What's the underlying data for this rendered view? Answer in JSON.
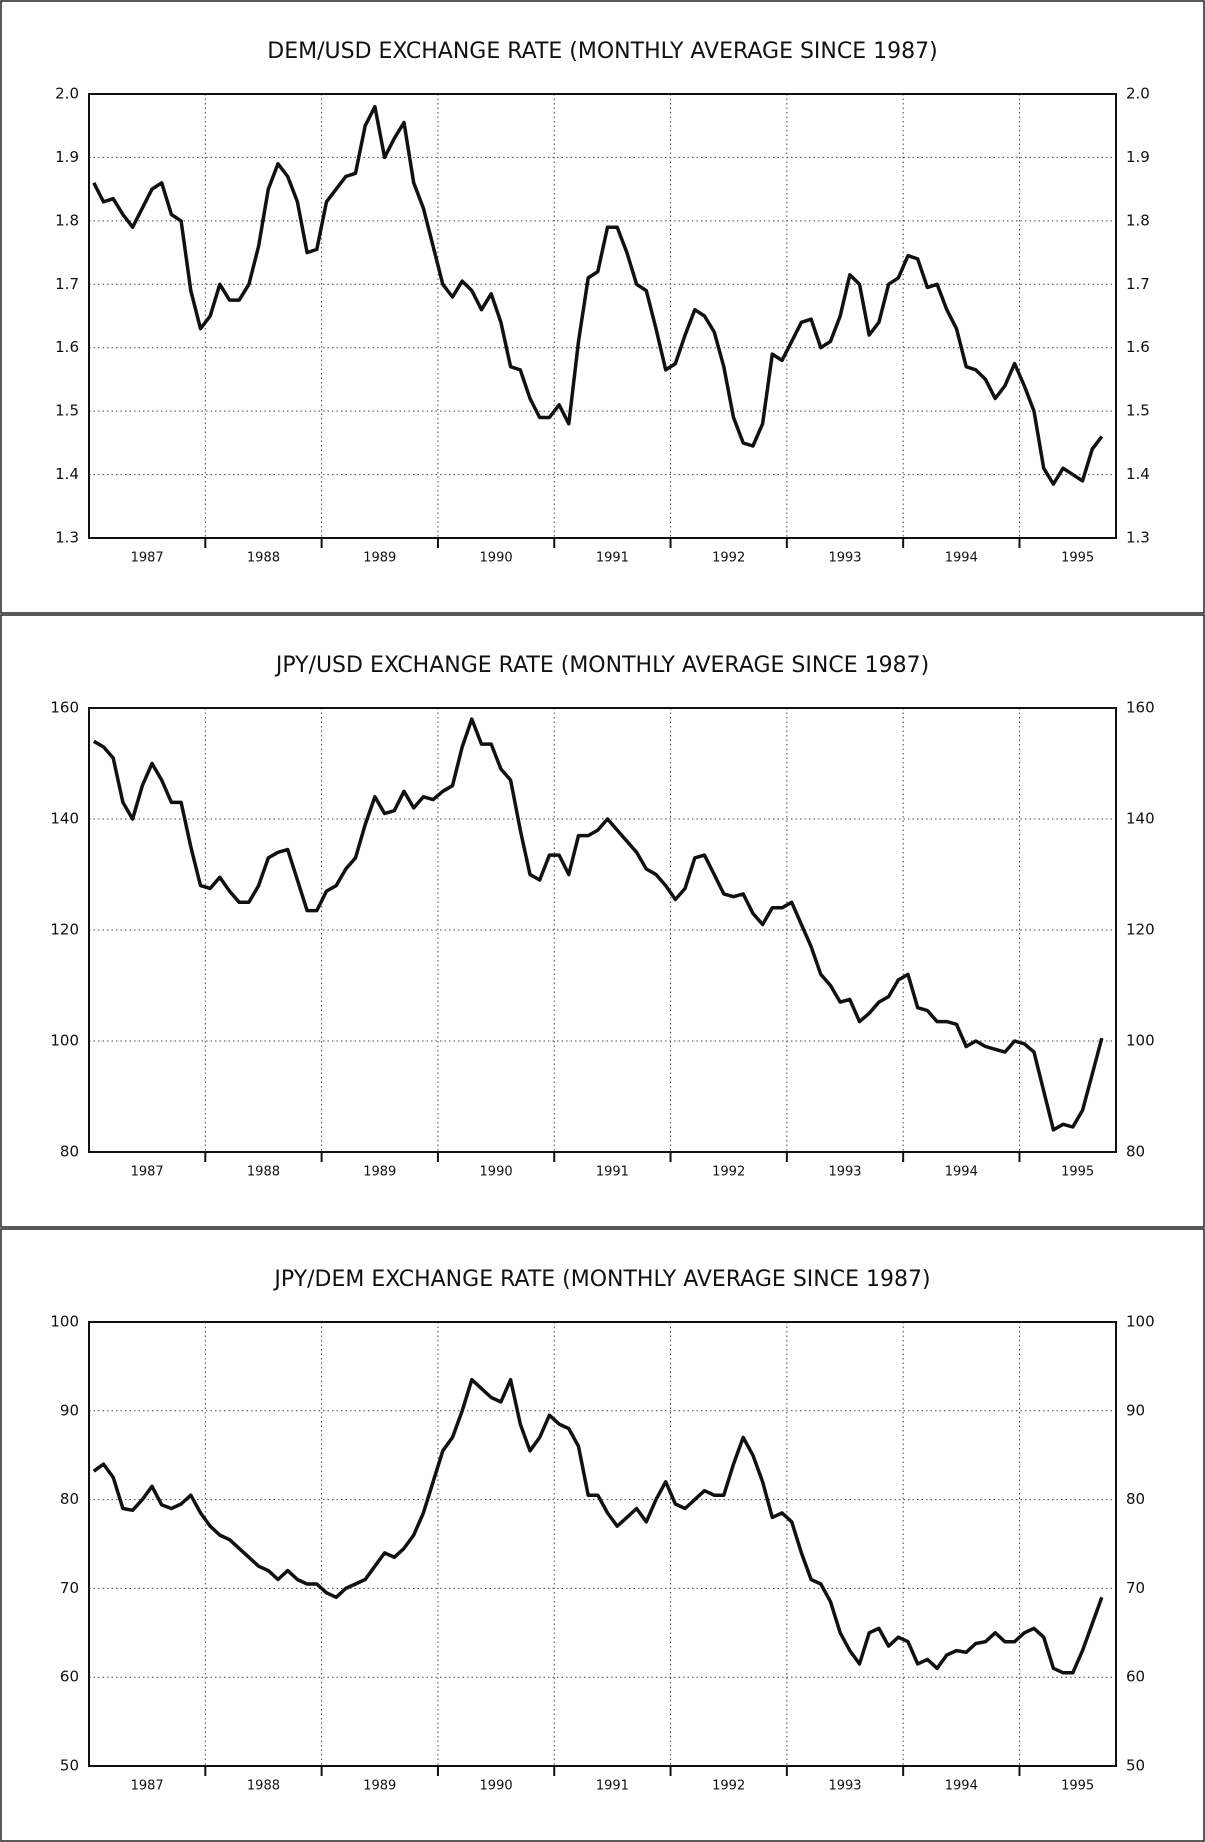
{
  "chart_data": [
    {
      "type": "line",
      "title": "DEM/USD EXCHANGE RATE (MONTHLY AVERAGE SINCE 1987)",
      "x": [
        "1987-01",
        "1987-02",
        "1987-03",
        "1987-04",
        "1987-05",
        "1987-06",
        "1987-07",
        "1987-08",
        "1987-09",
        "1987-10",
        "1987-11",
        "1987-12",
        "1988-01",
        "1988-02",
        "1988-03",
        "1988-04",
        "1988-05",
        "1988-06",
        "1988-07",
        "1988-08",
        "1988-09",
        "1988-10",
        "1988-11",
        "1988-12",
        "1989-01",
        "1989-02",
        "1989-03",
        "1989-04",
        "1989-05",
        "1989-06",
        "1989-07",
        "1989-08",
        "1989-09",
        "1989-10",
        "1989-11",
        "1989-12",
        "1990-01",
        "1990-02",
        "1990-03",
        "1990-04",
        "1990-05",
        "1990-06",
        "1990-07",
        "1990-08",
        "1990-09",
        "1990-10",
        "1990-11",
        "1990-12",
        "1991-01",
        "1991-02",
        "1991-03",
        "1991-04",
        "1991-05",
        "1991-06",
        "1991-07",
        "1991-08",
        "1991-09",
        "1991-10",
        "1991-11",
        "1991-12",
        "1992-01",
        "1992-02",
        "1992-03",
        "1992-04",
        "1992-05",
        "1992-06",
        "1992-07",
        "1992-08",
        "1992-09",
        "1992-10",
        "1992-11",
        "1992-12",
        "1993-01",
        "1993-02",
        "1993-03",
        "1993-04",
        "1993-05",
        "1993-06",
        "1993-07",
        "1993-08",
        "1993-09",
        "1993-10",
        "1993-11",
        "1993-12",
        "1994-01",
        "1994-02",
        "1994-03",
        "1994-04",
        "1994-05",
        "1994-06",
        "1994-07",
        "1994-08",
        "1994-09",
        "1994-10",
        "1994-11",
        "1994-12",
        "1995-01",
        "1995-02",
        "1995-03",
        "1995-04",
        "1995-05",
        "1995-06",
        "1995-07",
        "1995-08",
        "1995-09"
      ],
      "series": [
        {
          "color": "#111111",
          "values": [
            1.86,
            1.83,
            1.835,
            1.81,
            1.79,
            1.82,
            1.85,
            1.86,
            1.81,
            1.8,
            1.69,
            1.63,
            1.65,
            1.7,
            1.675,
            1.675,
            1.7,
            1.76,
            1.85,
            1.89,
            1.87,
            1.83,
            1.75,
            1.755,
            1.83,
            1.85,
            1.87,
            1.875,
            1.95,
            1.98,
            1.9,
            1.93,
            1.955,
            1.86,
            1.82,
            1.76,
            1.7,
            1.68,
            1.705,
            1.69,
            1.66,
            1.685,
            1.64,
            1.57,
            1.565,
            1.52,
            1.49,
            1.49,
            1.51,
            1.48,
            1.61,
            1.71,
            1.72,
            1.79,
            1.79,
            1.75,
            1.7,
            1.69,
            1.63,
            1.565,
            1.575,
            1.62,
            1.66,
            1.65,
            1.625,
            1.57,
            1.49,
            1.45,
            1.445,
            1.48,
            1.59,
            1.58,
            1.61,
            1.64,
            1.645,
            1.6,
            1.61,
            1.65,
            1.715,
            1.7,
            1.62,
            1.64,
            1.7,
            1.71,
            1.745,
            1.74,
            1.695,
            1.7,
            1.66,
            1.63,
            1.57,
            1.565,
            1.55,
            1.52,
            1.54,
            1.575,
            1.54,
            1.5,
            1.41,
            1.385,
            1.41,
            1.4,
            1.39,
            1.44,
            1.46
          ]
        }
      ],
      "xlim": [
        1987,
        1995.83
      ],
      "xgrid": [
        1988,
        1989,
        1990,
        1991,
        1992,
        1993,
        1994,
        1995
      ],
      "xticks": [
        {
          "value": 1987.5,
          "label": "1987"
        },
        {
          "value": 1988.5,
          "label": "1988"
        },
        {
          "value": 1989.5,
          "label": "1989"
        },
        {
          "value": 1990.5,
          "label": "1990"
        },
        {
          "value": 1991.5,
          "label": "1991"
        },
        {
          "value": 1992.5,
          "label": "1992"
        },
        {
          "value": 1993.5,
          "label": "1993"
        },
        {
          "value": 1994.5,
          "label": "1994"
        },
        {
          "value": 1995.5,
          "label": "1995"
        }
      ],
      "ylim": [
        1.3,
        2.0
      ],
      "yticks": [
        1.3,
        1.4,
        1.5,
        1.6,
        1.7,
        1.8,
        1.9,
        {
          "value": 2,
          "label": "2.0"
        }
      ],
      "grid": true
    },
    {
      "type": "line",
      "title": "JPY/USD EXCHANGE RATE (MONTHLY AVERAGE SINCE 1987)",
      "x": [
        "1987-01",
        "1987-02",
        "1987-03",
        "1987-04",
        "1987-05",
        "1987-06",
        "1987-07",
        "1987-08",
        "1987-09",
        "1987-10",
        "1987-11",
        "1987-12",
        "1988-01",
        "1988-02",
        "1988-03",
        "1988-04",
        "1988-05",
        "1988-06",
        "1988-07",
        "1988-08",
        "1988-09",
        "1988-10",
        "1988-11",
        "1988-12",
        "1989-01",
        "1989-02",
        "1989-03",
        "1989-04",
        "1989-05",
        "1989-06",
        "1989-07",
        "1989-08",
        "1989-09",
        "1989-10",
        "1989-11",
        "1989-12",
        "1990-01",
        "1990-02",
        "1990-03",
        "1990-04",
        "1990-05",
        "1990-06",
        "1990-07",
        "1990-08",
        "1990-09",
        "1990-10",
        "1990-11",
        "1990-12",
        "1991-01",
        "1991-02",
        "1991-03",
        "1991-04",
        "1991-05",
        "1991-06",
        "1991-07",
        "1991-08",
        "1991-09",
        "1991-10",
        "1991-11",
        "1991-12",
        "1992-01",
        "1992-02",
        "1992-03",
        "1992-04",
        "1992-05",
        "1992-06",
        "1992-07",
        "1992-08",
        "1992-09",
        "1992-10",
        "1992-11",
        "1992-12",
        "1993-01",
        "1993-02",
        "1993-03",
        "1993-04",
        "1993-05",
        "1993-06",
        "1993-07",
        "1993-08",
        "1993-09",
        "1993-10",
        "1993-11",
        "1993-12",
        "1994-01",
        "1994-02",
        "1994-03",
        "1994-04",
        "1994-05",
        "1994-06",
        "1994-07",
        "1994-08",
        "1994-09",
        "1994-10",
        "1994-11",
        "1994-12",
        "1995-01",
        "1995-02",
        "1995-03",
        "1995-04",
        "1995-05",
        "1995-06",
        "1995-07",
        "1995-08",
        "1995-09"
      ],
      "series": [
        {
          "color": "#111111",
          "values": [
            154,
            153,
            151,
            143,
            140,
            146,
            150,
            147,
            143,
            143,
            135,
            128,
            127.5,
            129.5,
            127,
            125,
            125,
            128,
            133,
            134,
            134.5,
            129,
            123.5,
            123.5,
            127,
            128,
            131,
            133,
            139,
            144,
            141,
            141.5,
            145,
            142,
            144,
            143.5,
            145,
            146,
            153,
            158,
            153.5,
            153.5,
            149,
            147,
            138,
            130,
            129,
            133.5,
            133.5,
            130,
            137,
            137,
            138,
            140,
            138,
            136,
            134,
            131,
            130,
            128,
            125.5,
            127.5,
            133,
            133.5,
            130,
            126.5,
            126,
            126.5,
            123,
            121,
            124,
            124,
            125,
            121,
            117,
            112,
            110,
            107,
            107.5,
            103.5,
            105,
            107,
            108,
            111,
            112,
            106,
            105.5,
            103.5,
            103.5,
            103,
            99,
            100,
            99,
            98.5,
            98,
            100,
            99.5,
            98,
            91,
            84,
            85,
            84.5,
            87.5,
            94,
            100.5
          ]
        }
      ],
      "xlim": [
        1987,
        1995.83
      ],
      "xgrid": [
        1988,
        1989,
        1990,
        1991,
        1992,
        1993,
        1994,
        1995
      ],
      "xticks": [
        {
          "value": 1987.5,
          "label": "1987"
        },
        {
          "value": 1988.5,
          "label": "1988"
        },
        {
          "value": 1989.5,
          "label": "1989"
        },
        {
          "value": 1990.5,
          "label": "1990"
        },
        {
          "value": 1991.5,
          "label": "1991"
        },
        {
          "value": 1992.5,
          "label": "1992"
        },
        {
          "value": 1993.5,
          "label": "1993"
        },
        {
          "value": 1994.5,
          "label": "1994"
        },
        {
          "value": 1995.5,
          "label": "1995"
        }
      ],
      "ylim": [
        80,
        160
      ],
      "yticks": [
        80,
        100,
        120,
        140,
        160
      ],
      "grid": true
    },
    {
      "type": "line",
      "title": "JPY/DEM EXCHANGE RATE (MONTHLY AVERAGE SINCE 1987)",
      "x": [
        "1987-01",
        "1987-02",
        "1987-03",
        "1987-04",
        "1987-05",
        "1987-06",
        "1987-07",
        "1987-08",
        "1987-09",
        "1987-10",
        "1987-11",
        "1987-12",
        "1988-01",
        "1988-02",
        "1988-03",
        "1988-04",
        "1988-05",
        "1988-06",
        "1988-07",
        "1988-08",
        "1988-09",
        "1988-10",
        "1988-11",
        "1988-12",
        "1989-01",
        "1989-02",
        "1989-03",
        "1989-04",
        "1989-05",
        "1989-06",
        "1989-07",
        "1989-08",
        "1989-09",
        "1989-10",
        "1989-11",
        "1989-12",
        "1990-01",
        "1990-02",
        "1990-03",
        "1990-04",
        "1990-05",
        "1990-06",
        "1990-07",
        "1990-08",
        "1990-09",
        "1990-10",
        "1990-11",
        "1990-12",
        "1991-01",
        "1991-02",
        "1991-03",
        "1991-04",
        "1991-05",
        "1991-06",
        "1991-07",
        "1991-08",
        "1991-09",
        "1991-10",
        "1991-11",
        "1991-12",
        "1992-01",
        "1992-02",
        "1992-03",
        "1992-04",
        "1992-05",
        "1992-06",
        "1992-07",
        "1992-08",
        "1992-09",
        "1992-10",
        "1992-11",
        "1992-12",
        "1993-01",
        "1993-02",
        "1993-03",
        "1993-04",
        "1993-05",
        "1993-06",
        "1993-07",
        "1993-08",
        "1993-09",
        "1993-10",
        "1993-11",
        "1993-12",
        "1994-01",
        "1994-02",
        "1994-03",
        "1994-04",
        "1994-05",
        "1994-06",
        "1994-07",
        "1994-08",
        "1994-09",
        "1994-10",
        "1994-11",
        "1994-12",
        "1995-01",
        "1995-02",
        "1995-03",
        "1995-04",
        "1995-05",
        "1995-06",
        "1995-07",
        "1995-08",
        "1995-09"
      ],
      "series": [
        {
          "color": "#111111",
          "values": [
            83.2,
            84,
            82.5,
            79,
            78.8,
            80,
            81.5,
            79.4,
            79,
            79.5,
            80.5,
            78.5,
            77,
            76,
            75.5,
            74.5,
            73.5,
            72.5,
            72,
            71,
            72,
            71,
            70.5,
            70.5,
            69.5,
            69,
            70,
            70.5,
            71,
            72.5,
            74,
            73.5,
            74.5,
            76,
            78.5,
            82,
            85.5,
            87,
            90,
            93.5,
            92.5,
            91.5,
            91,
            93.5,
            88.5,
            85.5,
            87,
            89.5,
            88.5,
            88,
            86,
            80.5,
            80.5,
            78.5,
            77,
            78,
            79,
            77.5,
            80,
            82,
            79.5,
            79,
            80,
            81,
            80.5,
            80.5,
            84,
            87,
            85,
            82,
            78,
            78.5,
            77.5,
            74,
            71,
            70.5,
            68.5,
            65,
            63,
            61.5,
            65,
            65.5,
            63.5,
            64.5,
            64,
            61.5,
            62,
            61,
            62.5,
            63,
            62.8,
            63.8,
            64,
            65,
            64,
            64,
            65,
            65.5,
            64.5,
            61,
            60.5,
            60.5,
            63,
            66,
            69
          ]
        }
      ],
      "xlim": [
        1987,
        1995.83
      ],
      "xgrid": [
        1988,
        1989,
        1990,
        1991,
        1992,
        1993,
        1994,
        1995
      ],
      "xticks": [
        {
          "value": 1987.5,
          "label": "1987"
        },
        {
          "value": 1988.5,
          "label": "1988"
        },
        {
          "value": 1989.5,
          "label": "1989"
        },
        {
          "value": 1990.5,
          "label": "1990"
        },
        {
          "value": 1991.5,
          "label": "1991"
        },
        {
          "value": 1992.5,
          "label": "1992"
        },
        {
          "value": 1993.5,
          "label": "1993"
        },
        {
          "value": 1994.5,
          "label": "1994"
        },
        {
          "value": 1995.5,
          "label": "1995"
        }
      ],
      "ylim": [
        50,
        100
      ],
      "yticks": [
        50,
        60,
        70,
        80,
        90,
        100
      ],
      "grid": true
    }
  ]
}
